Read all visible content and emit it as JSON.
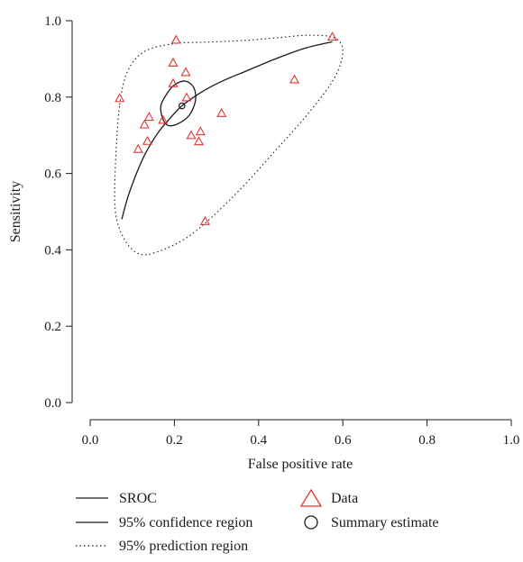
{
  "chart_data": {
    "type": "scatter",
    "xlabel": "False positive rate",
    "ylabel": "Sensitivity",
    "xlim": [
      0,
      1
    ],
    "ylim": [
      0,
      1
    ],
    "x_ticks": [
      "0.0",
      "0.2",
      "0.4",
      "0.6",
      "0.8",
      "1.0"
    ],
    "y_ticks": [
      "0.0",
      "0.2",
      "0.4",
      "0.6",
      "0.8",
      "1.0"
    ],
    "grid": false,
    "data_points": [
      {
        "x": 0.204,
        "y": 0.95
      },
      {
        "x": 0.575,
        "y": 0.958
      },
      {
        "x": 0.197,
        "y": 0.89
      },
      {
        "x": 0.227,
        "y": 0.865
      },
      {
        "x": 0.485,
        "y": 0.846
      },
      {
        "x": 0.197,
        "y": 0.836
      },
      {
        "x": 0.07,
        "y": 0.797
      },
      {
        "x": 0.229,
        "y": 0.799
      },
      {
        "x": 0.312,
        "y": 0.758
      },
      {
        "x": 0.14,
        "y": 0.748
      },
      {
        "x": 0.173,
        "y": 0.74
      },
      {
        "x": 0.129,
        "y": 0.728
      },
      {
        "x": 0.262,
        "y": 0.71
      },
      {
        "x": 0.24,
        "y": 0.7
      },
      {
        "x": 0.136,
        "y": 0.685
      },
      {
        "x": 0.258,
        "y": 0.684
      },
      {
        "x": 0.114,
        "y": 0.664
      },
      {
        "x": 0.273,
        "y": 0.475
      }
    ],
    "summary_estimate": {
      "x": 0.218,
      "y": 0.777
    },
    "sroc_curve": [
      [
        0.075,
        0.48
      ],
      [
        0.09,
        0.54
      ],
      [
        0.11,
        0.6
      ],
      [
        0.13,
        0.65
      ],
      [
        0.16,
        0.705
      ],
      [
        0.19,
        0.745
      ],
      [
        0.218,
        0.777
      ],
      [
        0.26,
        0.81
      ],
      [
        0.31,
        0.84
      ],
      [
        0.37,
        0.868
      ],
      [
        0.44,
        0.9
      ],
      [
        0.51,
        0.928
      ],
      [
        0.575,
        0.945
      ]
    ],
    "confidence_region": [
      [
        0.18,
        0.805
      ],
      [
        0.198,
        0.83
      ],
      [
        0.225,
        0.842
      ],
      [
        0.246,
        0.825
      ],
      [
        0.25,
        0.79
      ],
      [
        0.235,
        0.752
      ],
      [
        0.208,
        0.73
      ],
      [
        0.184,
        0.726
      ],
      [
        0.171,
        0.748
      ],
      [
        0.168,
        0.778
      ]
    ],
    "prediction_region": [
      [
        0.07,
        0.78
      ],
      [
        0.09,
        0.87
      ],
      [
        0.13,
        0.92
      ],
      [
        0.2,
        0.94
      ],
      [
        0.28,
        0.944
      ],
      [
        0.36,
        0.948
      ],
      [
        0.44,
        0.955
      ],
      [
        0.52,
        0.962
      ],
      [
        0.58,
        0.955
      ],
      [
        0.6,
        0.92
      ],
      [
        0.58,
        0.85
      ],
      [
        0.52,
        0.76
      ],
      [
        0.44,
        0.66
      ],
      [
        0.34,
        0.54
      ],
      [
        0.24,
        0.44
      ],
      [
        0.16,
        0.395
      ],
      [
        0.115,
        0.39
      ],
      [
        0.08,
        0.43
      ],
      [
        0.06,
        0.5
      ],
      [
        0.06,
        0.62
      ]
    ],
    "legend": [
      {
        "label": "SROC",
        "style": "solid"
      },
      {
        "label": "95% confidence region",
        "style": "solid"
      },
      {
        "label": "95% prediction region",
        "style": "dotted"
      },
      {
        "label": "Data",
        "marker": "triangle"
      },
      {
        "label": "Summary estimate",
        "marker": "circle"
      }
    ],
    "colors": {
      "data_points": "#e0342c",
      "lines": "#1a1a1a"
    }
  }
}
